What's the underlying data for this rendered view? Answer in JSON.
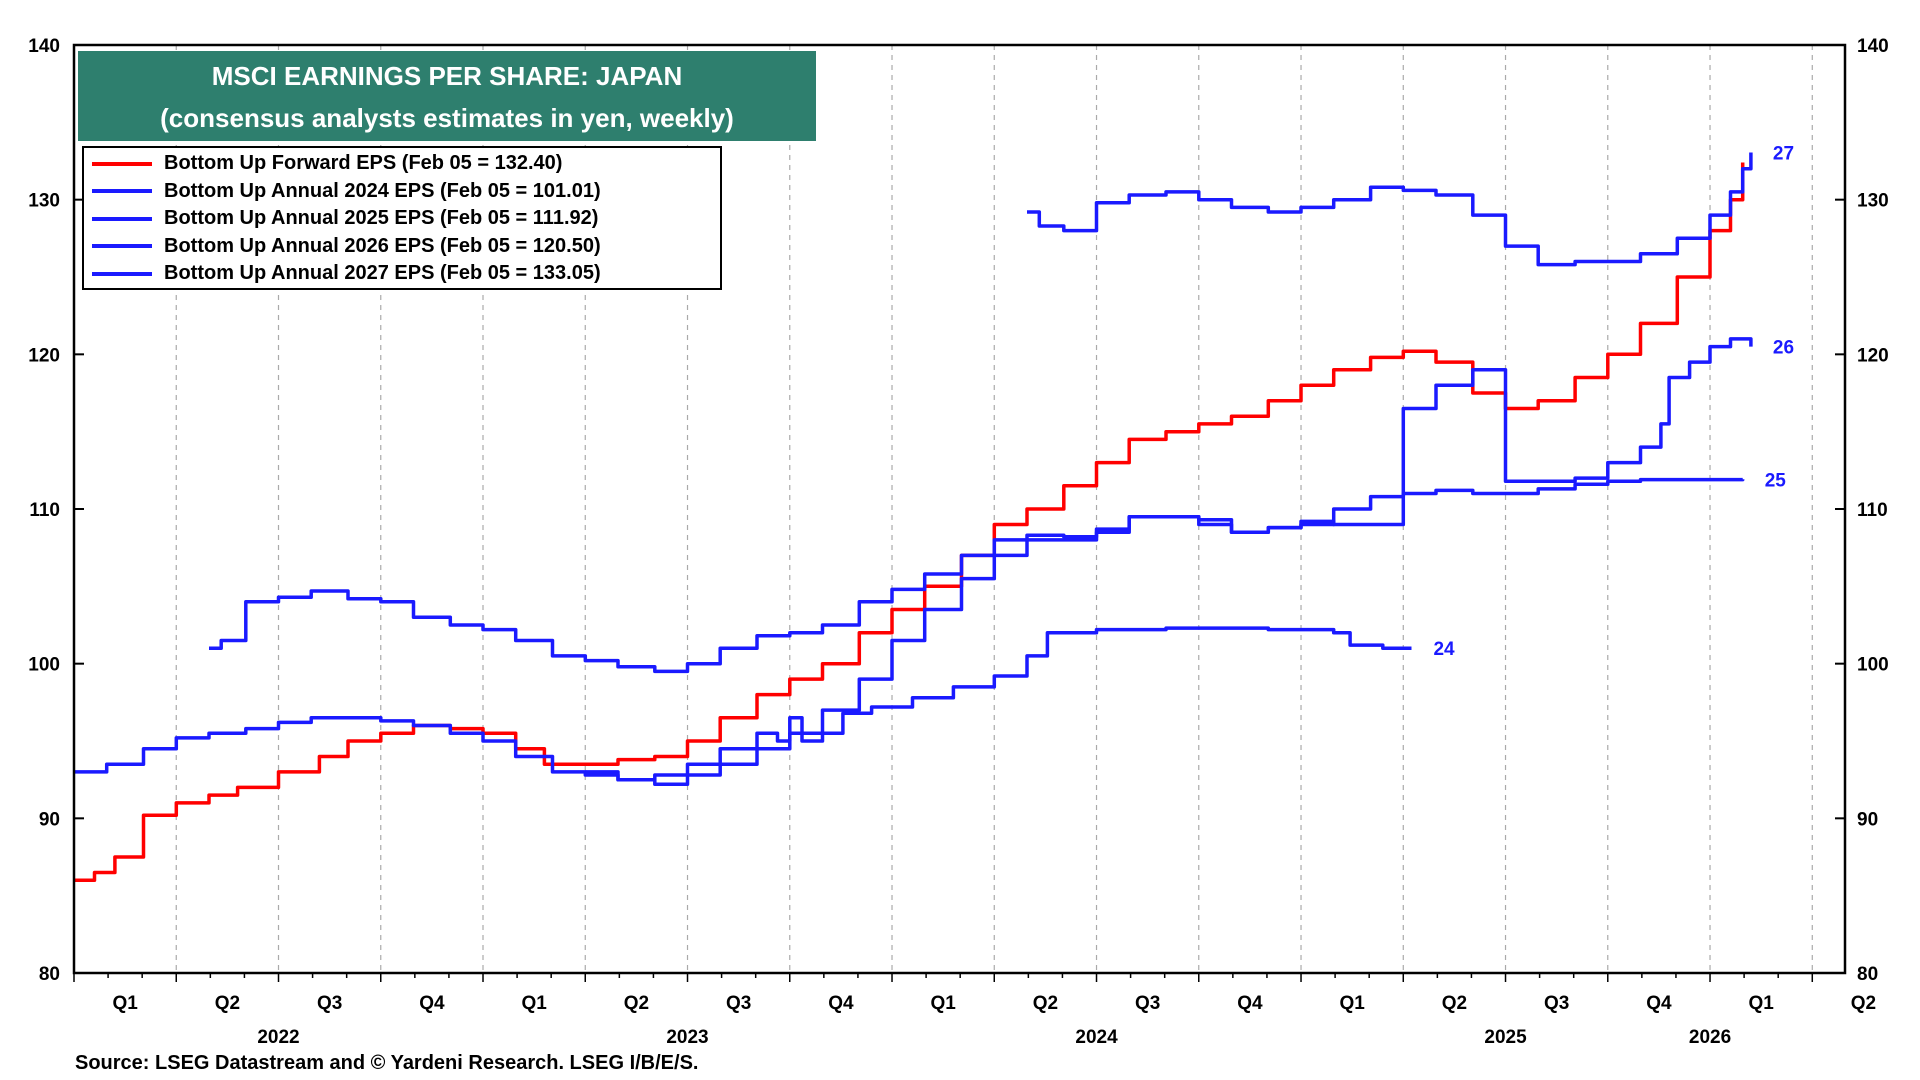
{
  "chart_data": {
    "type": "line",
    "title": "MSCI EARNINGS PER SHARE: JAPAN",
    "subtitle": "(consensus analysts estimates in yen, weekly)",
    "source": "Source: LSEG Datastream and © Yardeni Research. LSEG I/B/E/S.",
    "y_ticks": [
      "80",
      "90",
      "100",
      "110",
      "120",
      "130",
      "140"
    ],
    "ylim": [
      80,
      140
    ],
    "xlim": [
      2022.0,
      2026.33
    ],
    "x_quarters": [
      {
        "label": "Q1",
        "t": 2022.125
      },
      {
        "label": "Q2",
        "t": 2022.375
      },
      {
        "label": "Q3",
        "t": 2022.625
      },
      {
        "label": "Q4",
        "t": 2022.875
      },
      {
        "label": "Q1",
        "t": 2023.125
      },
      {
        "label": "Q2",
        "t": 2023.375
      },
      {
        "label": "Q3",
        "t": 2023.625
      },
      {
        "label": "Q4",
        "t": 2023.875
      },
      {
        "label": "Q1",
        "t": 2024.125
      },
      {
        "label": "Q2",
        "t": 2024.375
      },
      {
        "label": "Q3",
        "t": 2024.625
      },
      {
        "label": "Q4",
        "t": 2024.875
      },
      {
        "label": "Q1",
        "t": 2025.125
      },
      {
        "label": "Q2",
        "t": 2025.375
      },
      {
        "label": "Q3",
        "t": 2025.625
      },
      {
        "label": "Q4",
        "t": 2025.875
      },
      {
        "label": "Q1",
        "t": 2026.125
      },
      {
        "label": "Q2",
        "t": 2026.375
      }
    ],
    "x_years": [
      {
        "label": "2022",
        "t": 2022.5
      },
      {
        "label": "2023",
        "t": 2023.5
      },
      {
        "label": "2024",
        "t": 2024.5
      },
      {
        "label": "2025",
        "t": 2025.5
      },
      {
        "label": "2026",
        "t": 2026.0
      }
    ],
    "series": [
      {
        "name": "Bottom Up Forward EPS (Feb 05 = 132.40)",
        "color": "#ff0000",
        "end_label": "",
        "points": [
          [
            2022.0,
            86.0
          ],
          [
            2022.05,
            86.5
          ],
          [
            2022.1,
            87.5
          ],
          [
            2022.17,
            90.2
          ],
          [
            2022.25,
            91.0
          ],
          [
            2022.33,
            91.5
          ],
          [
            2022.4,
            92.0
          ],
          [
            2022.5,
            93.0
          ],
          [
            2022.6,
            94.0
          ],
          [
            2022.67,
            95.0
          ],
          [
            2022.75,
            95.5
          ],
          [
            2022.83,
            96.0
          ],
          [
            2022.92,
            95.8
          ],
          [
            2023.0,
            95.5
          ],
          [
            2023.08,
            94.5
          ],
          [
            2023.15,
            93.5
          ],
          [
            2023.25,
            93.5
          ],
          [
            2023.33,
            93.8
          ],
          [
            2023.42,
            94.0
          ],
          [
            2023.5,
            95.0
          ],
          [
            2023.58,
            96.5
          ],
          [
            2023.67,
            98.0
          ],
          [
            2023.75,
            99.0
          ],
          [
            2023.83,
            100.0
          ],
          [
            2023.92,
            102.0
          ],
          [
            2024.0,
            103.5
          ],
          [
            2024.08,
            105.0
          ],
          [
            2024.17,
            107.0
          ],
          [
            2024.25,
            109.0
          ],
          [
            2024.33,
            110.0
          ],
          [
            2024.42,
            111.5
          ],
          [
            2024.5,
            113.0
          ],
          [
            2024.58,
            114.5
          ],
          [
            2024.67,
            115.0
          ],
          [
            2024.75,
            115.5
          ],
          [
            2024.83,
            116.0
          ],
          [
            2024.92,
            117.0
          ],
          [
            2025.0,
            118.0
          ],
          [
            2025.08,
            119.0
          ],
          [
            2025.17,
            119.8
          ],
          [
            2025.25,
            120.2
          ],
          [
            2025.33,
            119.5
          ],
          [
            2025.42,
            117.5
          ],
          [
            2025.5,
            116.5
          ],
          [
            2025.58,
            117.0
          ],
          [
            2025.67,
            118.5
          ],
          [
            2025.75,
            120.0
          ],
          [
            2025.83,
            122.0
          ],
          [
            2025.92,
            125.0
          ],
          [
            2026.0,
            128.0
          ],
          [
            2026.05,
            130.0
          ],
          [
            2026.08,
            132.4
          ]
        ]
      },
      {
        "name": "Bottom Up Annual 2024 EPS (Feb 05 = 101.01)",
        "color": "#1a1aff",
        "end_label": "24",
        "points": [
          [
            2023.25,
            93.0
          ],
          [
            2023.33,
            92.5
          ],
          [
            2023.42,
            92.8
          ],
          [
            2023.5,
            93.5
          ],
          [
            2023.58,
            94.5
          ],
          [
            2023.67,
            95.5
          ],
          [
            2023.72,
            95.0
          ],
          [
            2023.75,
            96.5
          ],
          [
            2023.78,
            95.0
          ],
          [
            2023.83,
            95.5
          ],
          [
            2023.88,
            96.8
          ],
          [
            2023.95,
            97.2
          ],
          [
            2024.05,
            97.8
          ],
          [
            2024.15,
            98.5
          ],
          [
            2024.25,
            99.2
          ],
          [
            2024.33,
            100.5
          ],
          [
            2024.38,
            102.0
          ],
          [
            2024.5,
            102.2
          ],
          [
            2024.67,
            102.3
          ],
          [
            2024.83,
            102.3
          ],
          [
            2024.92,
            102.2
          ],
          [
            2025.08,
            102.0
          ],
          [
            2025.12,
            101.2
          ],
          [
            2025.2,
            101.0
          ],
          [
            2025.27,
            101.0
          ]
        ]
      },
      {
        "name": "Bottom Up Annual 2025 EPS (Feb 05 = 111.92)",
        "color": "#1a1aff",
        "end_label": "25",
        "points": [
          [
            2022.0,
            93.0
          ],
          [
            2022.08,
            93.5
          ],
          [
            2022.17,
            94.5
          ],
          [
            2022.25,
            95.2
          ],
          [
            2022.33,
            95.5
          ],
          [
            2022.42,
            95.8
          ],
          [
            2022.5,
            96.2
          ],
          [
            2022.58,
            96.5
          ],
          [
            2022.67,
            96.5
          ],
          [
            2022.75,
            96.3
          ],
          [
            2022.83,
            96.0
          ],
          [
            2022.92,
            95.5
          ],
          [
            2023.0,
            95.0
          ],
          [
            2023.08,
            94.0
          ],
          [
            2023.17,
            93.0
          ],
          [
            2023.25,
            92.8
          ],
          [
            2023.33,
            92.5
          ],
          [
            2023.42,
            92.2
          ],
          [
            2023.5,
            92.8
          ],
          [
            2023.58,
            93.5
          ],
          [
            2023.67,
            94.5
          ],
          [
            2023.75,
            95.5
          ],
          [
            2023.83,
            97.0
          ],
          [
            2023.92,
            99.0
          ],
          [
            2024.0,
            101.5
          ],
          [
            2024.08,
            103.5
          ],
          [
            2024.17,
            105.5
          ],
          [
            2024.25,
            107.0
          ],
          [
            2024.33,
            108.0
          ],
          [
            2024.42,
            108.0
          ],
          [
            2024.5,
            108.5
          ],
          [
            2024.58,
            109.5
          ],
          [
            2024.67,
            109.5
          ],
          [
            2024.75,
            109.3
          ],
          [
            2024.83,
            108.5
          ],
          [
            2024.92,
            108.8
          ],
          [
            2025.0,
            109.0
          ],
          [
            2025.08,
            110.0
          ],
          [
            2025.17,
            110.8
          ],
          [
            2025.25,
            111.0
          ],
          [
            2025.33,
            111.2
          ],
          [
            2025.42,
            111.0
          ],
          [
            2025.5,
            111.0
          ],
          [
            2025.58,
            111.3
          ],
          [
            2025.67,
            111.6
          ],
          [
            2025.75,
            111.8
          ],
          [
            2025.83,
            111.9
          ],
          [
            2025.92,
            111.9
          ],
          [
            2026.0,
            111.9
          ],
          [
            2026.08,
            111.92
          ]
        ]
      },
      {
        "name": "Bottom Up Annual 2026 EPS (Feb 05 = 120.50)",
        "color": "#1a1aff",
        "end_label": "26",
        "points": [
          [
            2022.33,
            101.0
          ],
          [
            2022.36,
            101.5
          ],
          [
            2022.42,
            104.0
          ],
          [
            2022.5,
            104.3
          ],
          [
            2022.58,
            104.7
          ],
          [
            2022.67,
            104.2
          ],
          [
            2022.75,
            104.0
          ],
          [
            2022.83,
            103.0
          ],
          [
            2022.92,
            102.5
          ],
          [
            2023.0,
            102.2
          ],
          [
            2023.08,
            101.5
          ],
          [
            2023.17,
            100.5
          ],
          [
            2023.25,
            100.2
          ],
          [
            2023.33,
            99.8
          ],
          [
            2023.42,
            99.5
          ],
          [
            2023.5,
            100.0
          ],
          [
            2023.58,
            101.0
          ],
          [
            2023.67,
            101.8
          ],
          [
            2023.75,
            102.0
          ],
          [
            2023.83,
            102.5
          ],
          [
            2023.92,
            104.0
          ],
          [
            2024.0,
            104.8
          ],
          [
            2024.08,
            105.8
          ],
          [
            2024.17,
            107.0
          ],
          [
            2024.25,
            108.0
          ],
          [
            2024.33,
            108.3
          ],
          [
            2024.42,
            108.2
          ],
          [
            2024.5,
            108.7
          ],
          [
            2024.58,
            109.5
          ],
          [
            2024.67,
            109.5
          ],
          [
            2024.75,
            109.0
          ],
          [
            2024.83,
            108.5
          ],
          [
            2024.92,
            108.8
          ],
          [
            2025.0,
            109.2
          ],
          [
            2025.08,
            109.0
          ],
          [
            2025.17,
            109.0
          ],
          [
            2025.25,
            116.5
          ],
          [
            2025.33,
            118.0
          ],
          [
            2025.42,
            119.0
          ],
          [
            2025.5,
            111.8
          ],
          [
            2025.58,
            111.8
          ],
          [
            2025.67,
            112.0
          ],
          [
            2025.75,
            113.0
          ],
          [
            2025.83,
            114.0
          ],
          [
            2025.88,
            115.5
          ],
          [
            2025.9,
            118.5
          ],
          [
            2025.95,
            119.5
          ],
          [
            2026.0,
            120.5
          ],
          [
            2026.05,
            121.0
          ],
          [
            2026.1,
            120.5
          ]
        ]
      },
      {
        "name": "Bottom Up Annual 2027 EPS (Feb 05 = 133.05)",
        "color": "#1a1aff",
        "end_label": "27",
        "points": [
          [
            2024.33,
            129.2
          ],
          [
            2024.36,
            128.3
          ],
          [
            2024.42,
            128.0
          ],
          [
            2024.5,
            129.8
          ],
          [
            2024.58,
            130.3
          ],
          [
            2024.67,
            130.5
          ],
          [
            2024.75,
            130.0
          ],
          [
            2024.83,
            129.5
          ],
          [
            2024.92,
            129.2
          ],
          [
            2025.0,
            129.5
          ],
          [
            2025.08,
            130.0
          ],
          [
            2025.17,
            130.8
          ],
          [
            2025.25,
            130.6
          ],
          [
            2025.33,
            130.3
          ],
          [
            2025.42,
            129.0
          ],
          [
            2025.5,
            127.0
          ],
          [
            2025.58,
            125.8
          ],
          [
            2025.67,
            126.0
          ],
          [
            2025.75,
            126.0
          ],
          [
            2025.83,
            126.5
          ],
          [
            2025.92,
            127.5
          ],
          [
            2026.0,
            129.0
          ],
          [
            2026.05,
            130.5
          ],
          [
            2026.08,
            132.0
          ],
          [
            2026.1,
            133.05
          ]
        ]
      }
    ]
  }
}
